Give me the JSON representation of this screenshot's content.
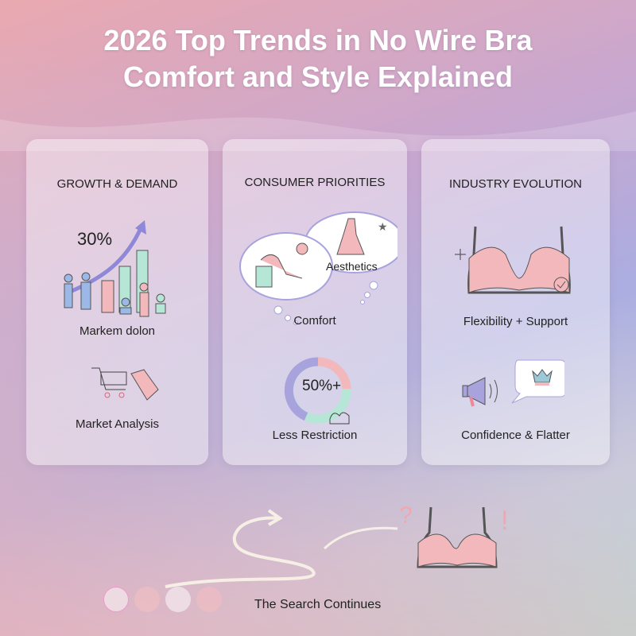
{
  "title": {
    "line1": "2026 Top Trends in No Wire Bra",
    "line2": "Comfort and Style Explained"
  },
  "cards": [
    {
      "heading": "GROWTH & DEMAND",
      "stat": "30%",
      "label1": "Markem dolon",
      "label2": "Market Analysis"
    },
    {
      "heading": "CONSUMER PRIORITIES",
      "bubble": "Aesthetics",
      "label1": "Comfort",
      "stat": "50%+",
      "label2": "Less Restriction"
    },
    {
      "heading": "INDUSTRY EVOLUTION",
      "label1": "Flexibility + Support",
      "label2": "Confidence & Flatter"
    }
  ],
  "footer": {
    "text": "The Search Continues",
    "marks": [
      "?",
      "!"
    ]
  },
  "colors": {
    "pink": "#f2b8bc",
    "mint": "#b6e6d6",
    "lavender": "#a9a3dd",
    "blue": "#9cb8e6"
  }
}
